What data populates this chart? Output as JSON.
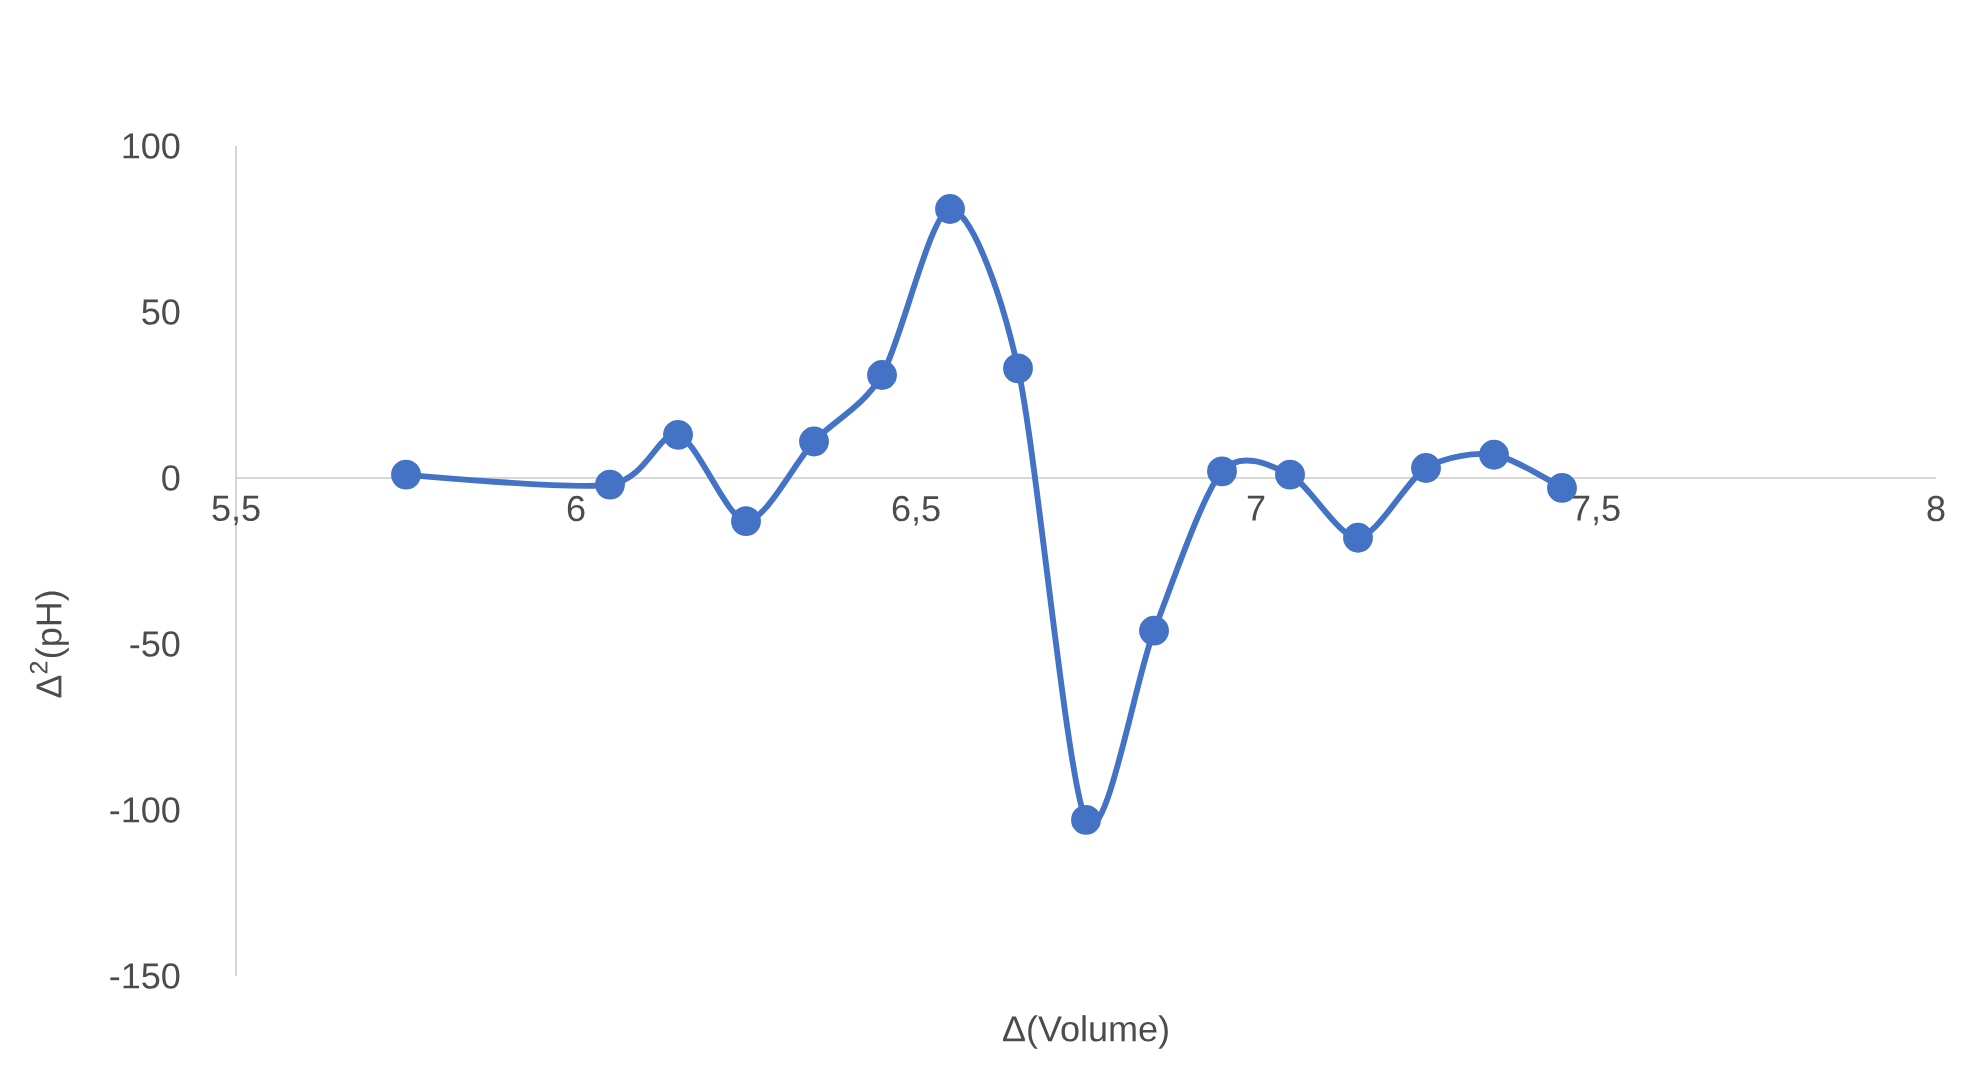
{
  "chart_data": {
    "type": "line",
    "xlabel": "Δ(Volume)",
    "ylabel": "Δ$^{2}$(pH)",
    "x": [
      5.75,
      6.05,
      6.15,
      6.25,
      6.35,
      6.45,
      6.55,
      6.65,
      6.75,
      6.85,
      6.95,
      7.05,
      7.15,
      7.25,
      7.35,
      7.45
    ],
    "series": [
      {
        "color": "#4472c4",
        "values": [
          1,
          -2,
          13,
          -13,
          11,
          31,
          81,
          33,
          -103,
          -46,
          2,
          1,
          -18,
          3,
          7,
          -3
        ]
      }
    ],
    "xlim": [
      5.5,
      8
    ],
    "ylim": [
      -150,
      100
    ],
    "xticks": [
      {
        "value": 5.5,
        "label": "5,5"
      },
      6,
      {
        "value": 6.5,
        "label": "6,5"
      },
      7,
      {
        "value": 7.5,
        "label": "7,5"
      },
      8
    ],
    "yticks": [
      -150,
      -100,
      -50,
      0,
      50,
      100
    ],
    "grid": false,
    "marker": "circle",
    "line_style": "solid"
  }
}
